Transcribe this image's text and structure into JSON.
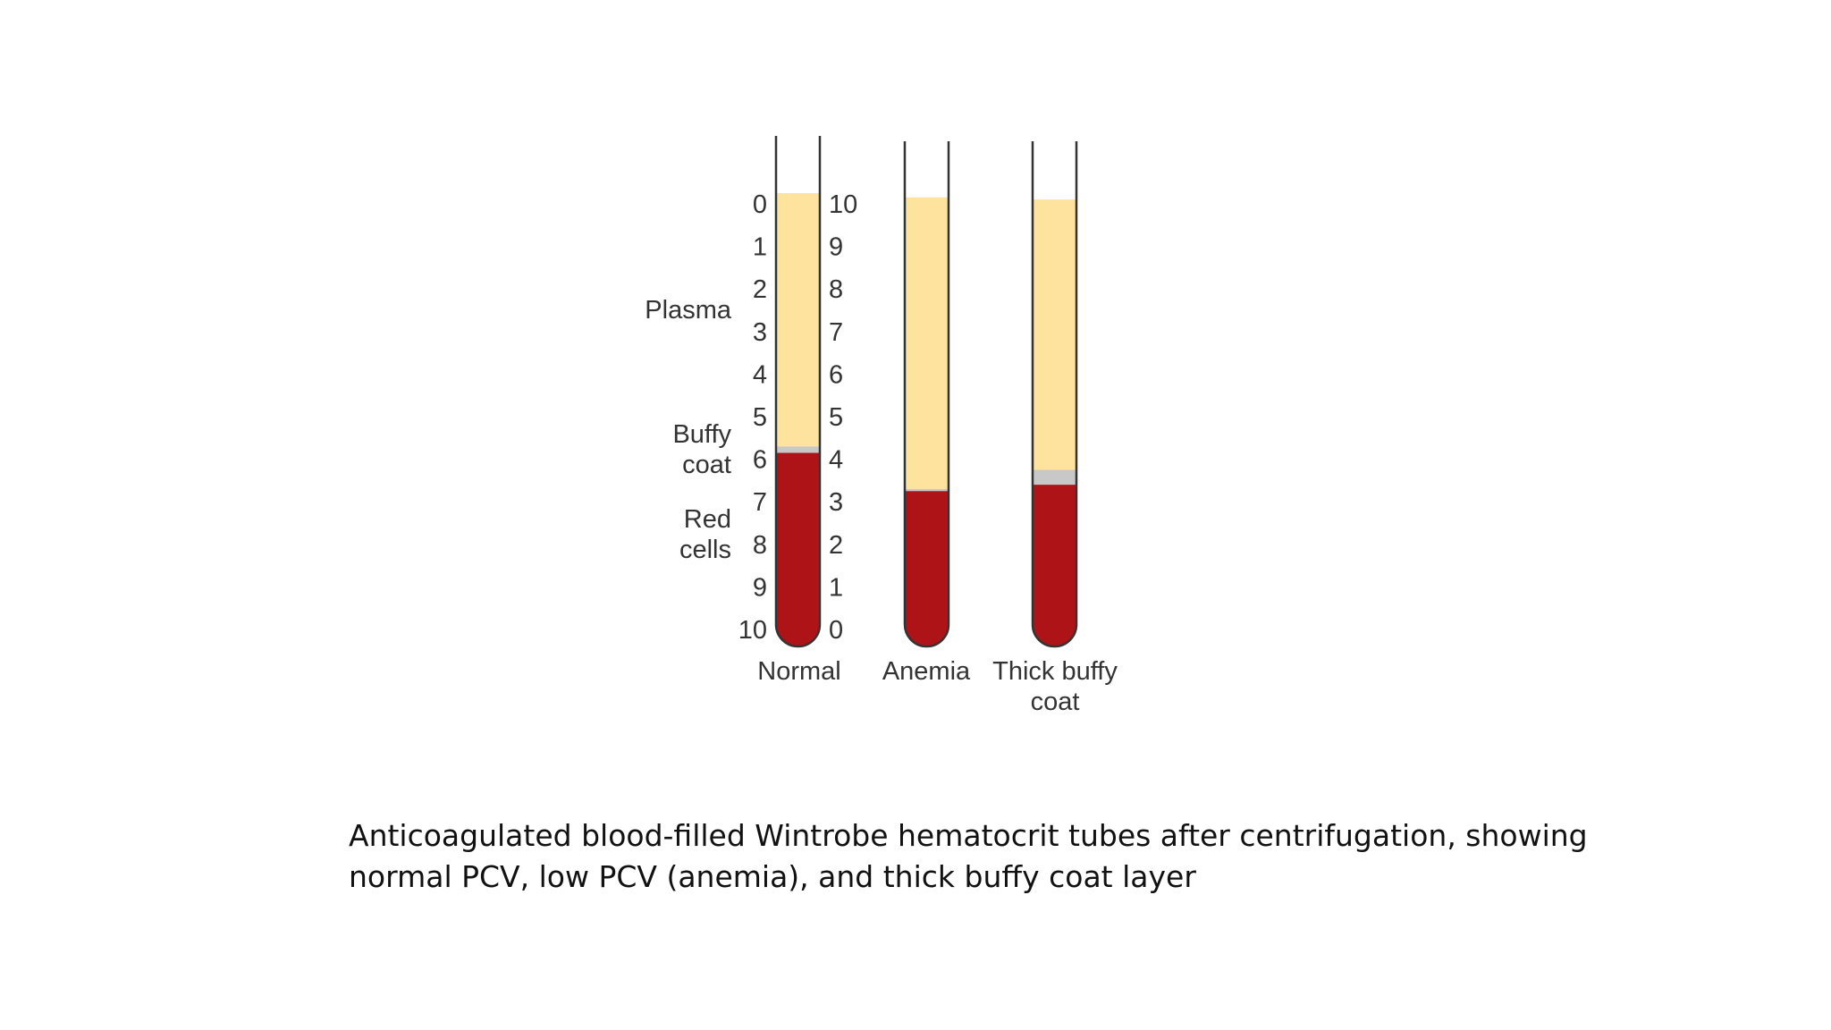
{
  "diagram": {
    "side_labels": {
      "plasma": "Plasma",
      "buffy_line1": "Buffy",
      "buffy_line2": "coat",
      "red_line1": "Red",
      "red_line2": "cells"
    },
    "scale_left": [
      "0",
      "1",
      "2",
      "3",
      "4",
      "5",
      "6",
      "7",
      "8",
      "9",
      "10"
    ],
    "scale_right": [
      "10",
      "9",
      "8",
      "7",
      "6",
      "5",
      "4",
      "3",
      "2",
      "1",
      "0"
    ],
    "tubes": [
      {
        "label_line1": "Normal",
        "label_line2": "",
        "plasma_top": 0.0,
        "buffy_top": 5.7,
        "red_top": 5.85
      },
      {
        "label_line1": "Anemia",
        "label_line2": "",
        "plasma_top": 0.1,
        "buffy_top": 6.7,
        "red_top": 6.75
      },
      {
        "label_line1": "Thick buffy",
        "label_line2": "coat",
        "plasma_top": 0.15,
        "buffy_top": 6.25,
        "red_top": 6.6
      }
    ],
    "colors": {
      "plasma": "#FDE39E",
      "buffy_coat": "#C8C8C8",
      "red_cells": "#AE1417",
      "tube_wall": "#333333",
      "text": "#333333"
    }
  },
  "caption": {
    "line1": "Anticoagulated blood-filled Wintrobe hematocrit tubes after centrifugation, showing",
    "line2": "normal PCV, low PCV (anemia), and thick buffy coat layer"
  }
}
